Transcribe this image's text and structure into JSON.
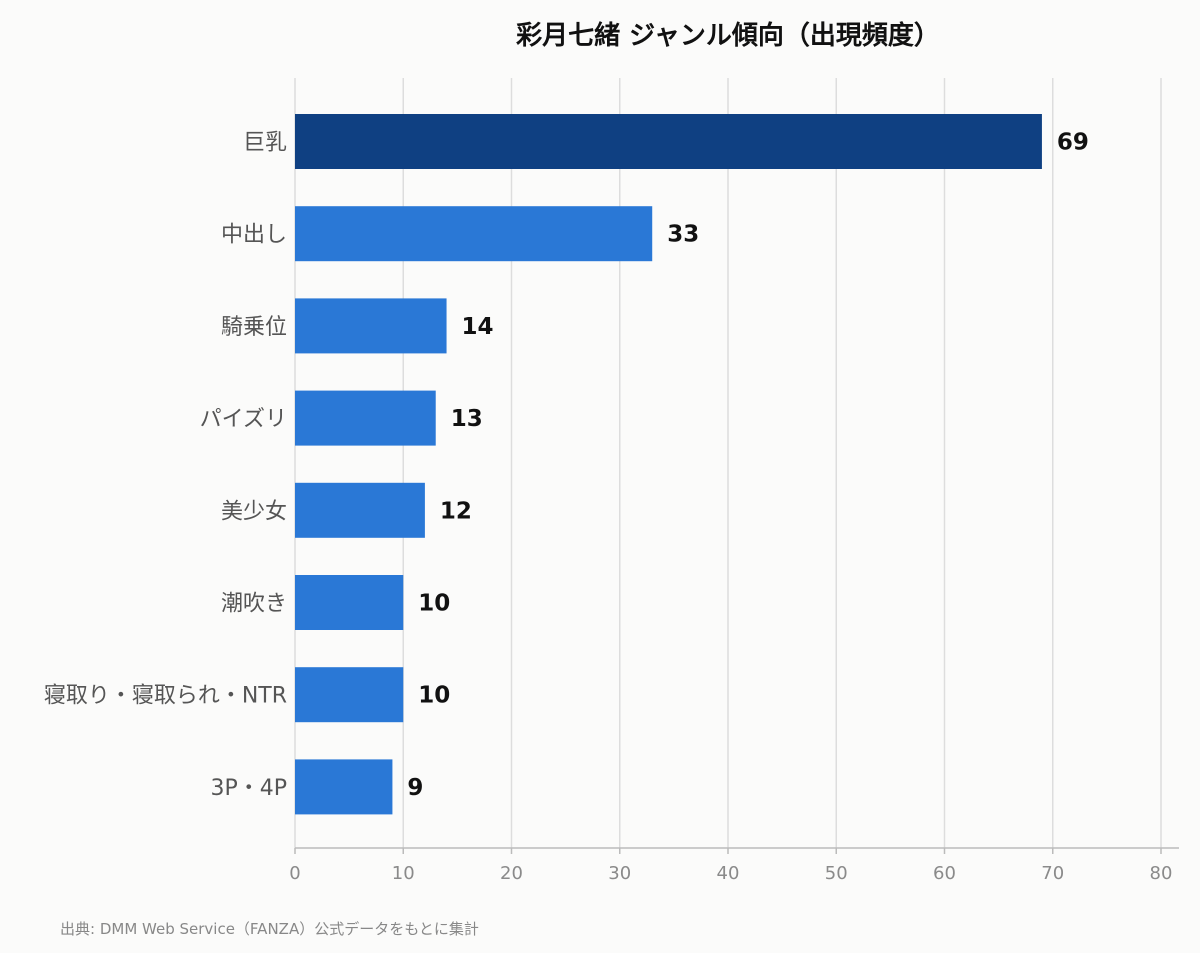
{
  "chart_data": {
    "type": "bar",
    "orientation": "horizontal",
    "title": "彩月七緒 ジャンル傾向（出現頻度）",
    "categories": [
      "巨乳",
      "中出し",
      "騎乗位",
      "パイズリ",
      "美少女",
      "潮吹き",
      "寝取り・寝取られ・NTR",
      "3P・4P"
    ],
    "values": [
      69,
      33,
      14,
      13,
      12,
      10,
      10,
      9
    ],
    "value_labels": [
      "69",
      "33",
      "14",
      "13",
      "12",
      "10",
      "10",
      "9"
    ],
    "xlim": [
      0,
      80
    ],
    "x_ticks": [
      0,
      10,
      20,
      30,
      40,
      50,
      60,
      70,
      80
    ],
    "x_tick_labels": [
      "0",
      "10",
      "20",
      "30",
      "40",
      "50",
      "60",
      "70",
      "80"
    ],
    "grid": "vertical",
    "colors": {
      "highlight": "#0f4082",
      "bar": "#2a78d6",
      "grid": "#dddddd",
      "axis": "#bbbbbb"
    }
  },
  "source_note": "出典: DMM Web Service（FANZA）公式データをもとに集計"
}
